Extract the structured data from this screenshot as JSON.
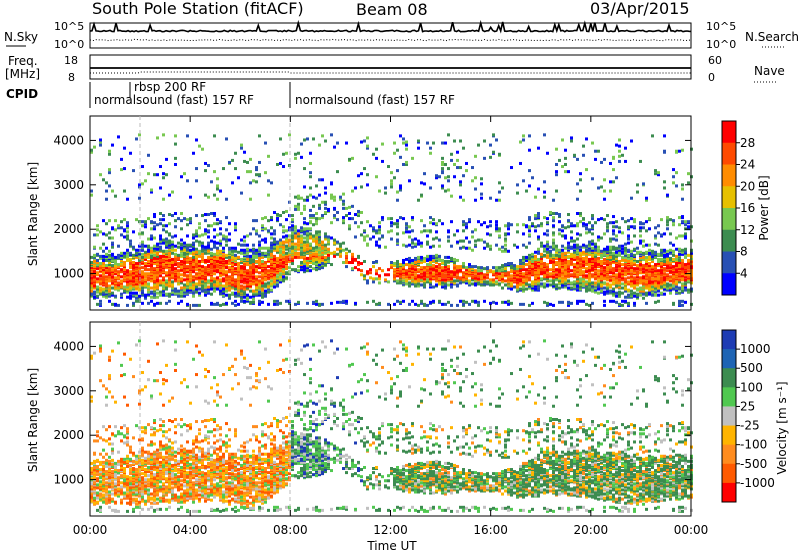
{
  "header": {
    "station": "South Pole Station (fitACF)",
    "beam": "Beam 08",
    "date": "03/Apr/2015"
  },
  "top_panels": {
    "nsky": {
      "label": "N.Sky",
      "ticks": [
        "10^5",
        "10^0"
      ]
    },
    "nsearch": {
      "label": "N.Search",
      "ticks": [
        "10^5",
        "10^0"
      ]
    },
    "freq": {
      "label_1": "Freq.",
      "label_2": "[MHz]",
      "ticks": [
        "18",
        "8"
      ]
    },
    "nave": {
      "label": "Nave",
      "ticks": [
        "60",
        "0"
      ]
    },
    "cpid": {
      "label": "CPID",
      "segments": [
        {
          "start_h": 0.0,
          "end_h": 8.0,
          "text": "normalsound (fast) 157 RF"
        },
        {
          "start_h": 1.6,
          "end_h": 8.0,
          "text": "rbsp 200 RF"
        },
        {
          "start_h": 8.0,
          "end_h": 24.0,
          "text": "normalsound (fast) 157 RF"
        }
      ]
    }
  },
  "chart_data": [
    {
      "type": "heatmap",
      "name": "power",
      "ylabel": "Slant Range [km]",
      "xlim": [
        0,
        24
      ],
      "ylim": [
        180,
        4550
      ],
      "yticks": [
        1000,
        2000,
        3000,
        4000
      ],
      "colorbar": {
        "label": "Power [dB]",
        "ticks": [
          "28",
          "24",
          "20",
          "16",
          "12",
          "8",
          "4"
        ],
        "colors": [
          "#ff0000",
          "#ff4a00",
          "#ff8c00",
          "#e6c000",
          "#78c850",
          "#3c8c50",
          "#2850b4",
          "#0000ff"
        ]
      }
    },
    {
      "type": "heatmap",
      "name": "velocity",
      "ylabel": "Slant Range [km]",
      "xlabel": "Time UT",
      "xlim": [
        0,
        24
      ],
      "ylim": [
        180,
        4550
      ],
      "yticks": [
        1000,
        2000,
        3000,
        4000
      ],
      "xticks": [
        "00:00",
        "04:00",
        "08:00",
        "12:00",
        "16:00",
        "20:00",
        "00:00"
      ],
      "colorbar": {
        "label": "Velocity [m s⁻¹]",
        "ticks": [
          "1000",
          "500",
          "100",
          "25",
          "-25",
          "-100",
          "-500",
          "-1000"
        ],
        "colors": [
          "#1e3cb4",
          "#1e64b4",
          "#3c8c50",
          "#50c850",
          "#c0c0c0",
          "#ffb400",
          "#ff8c1e",
          "#ff5a00",
          "#ff0000"
        ]
      }
    }
  ]
}
